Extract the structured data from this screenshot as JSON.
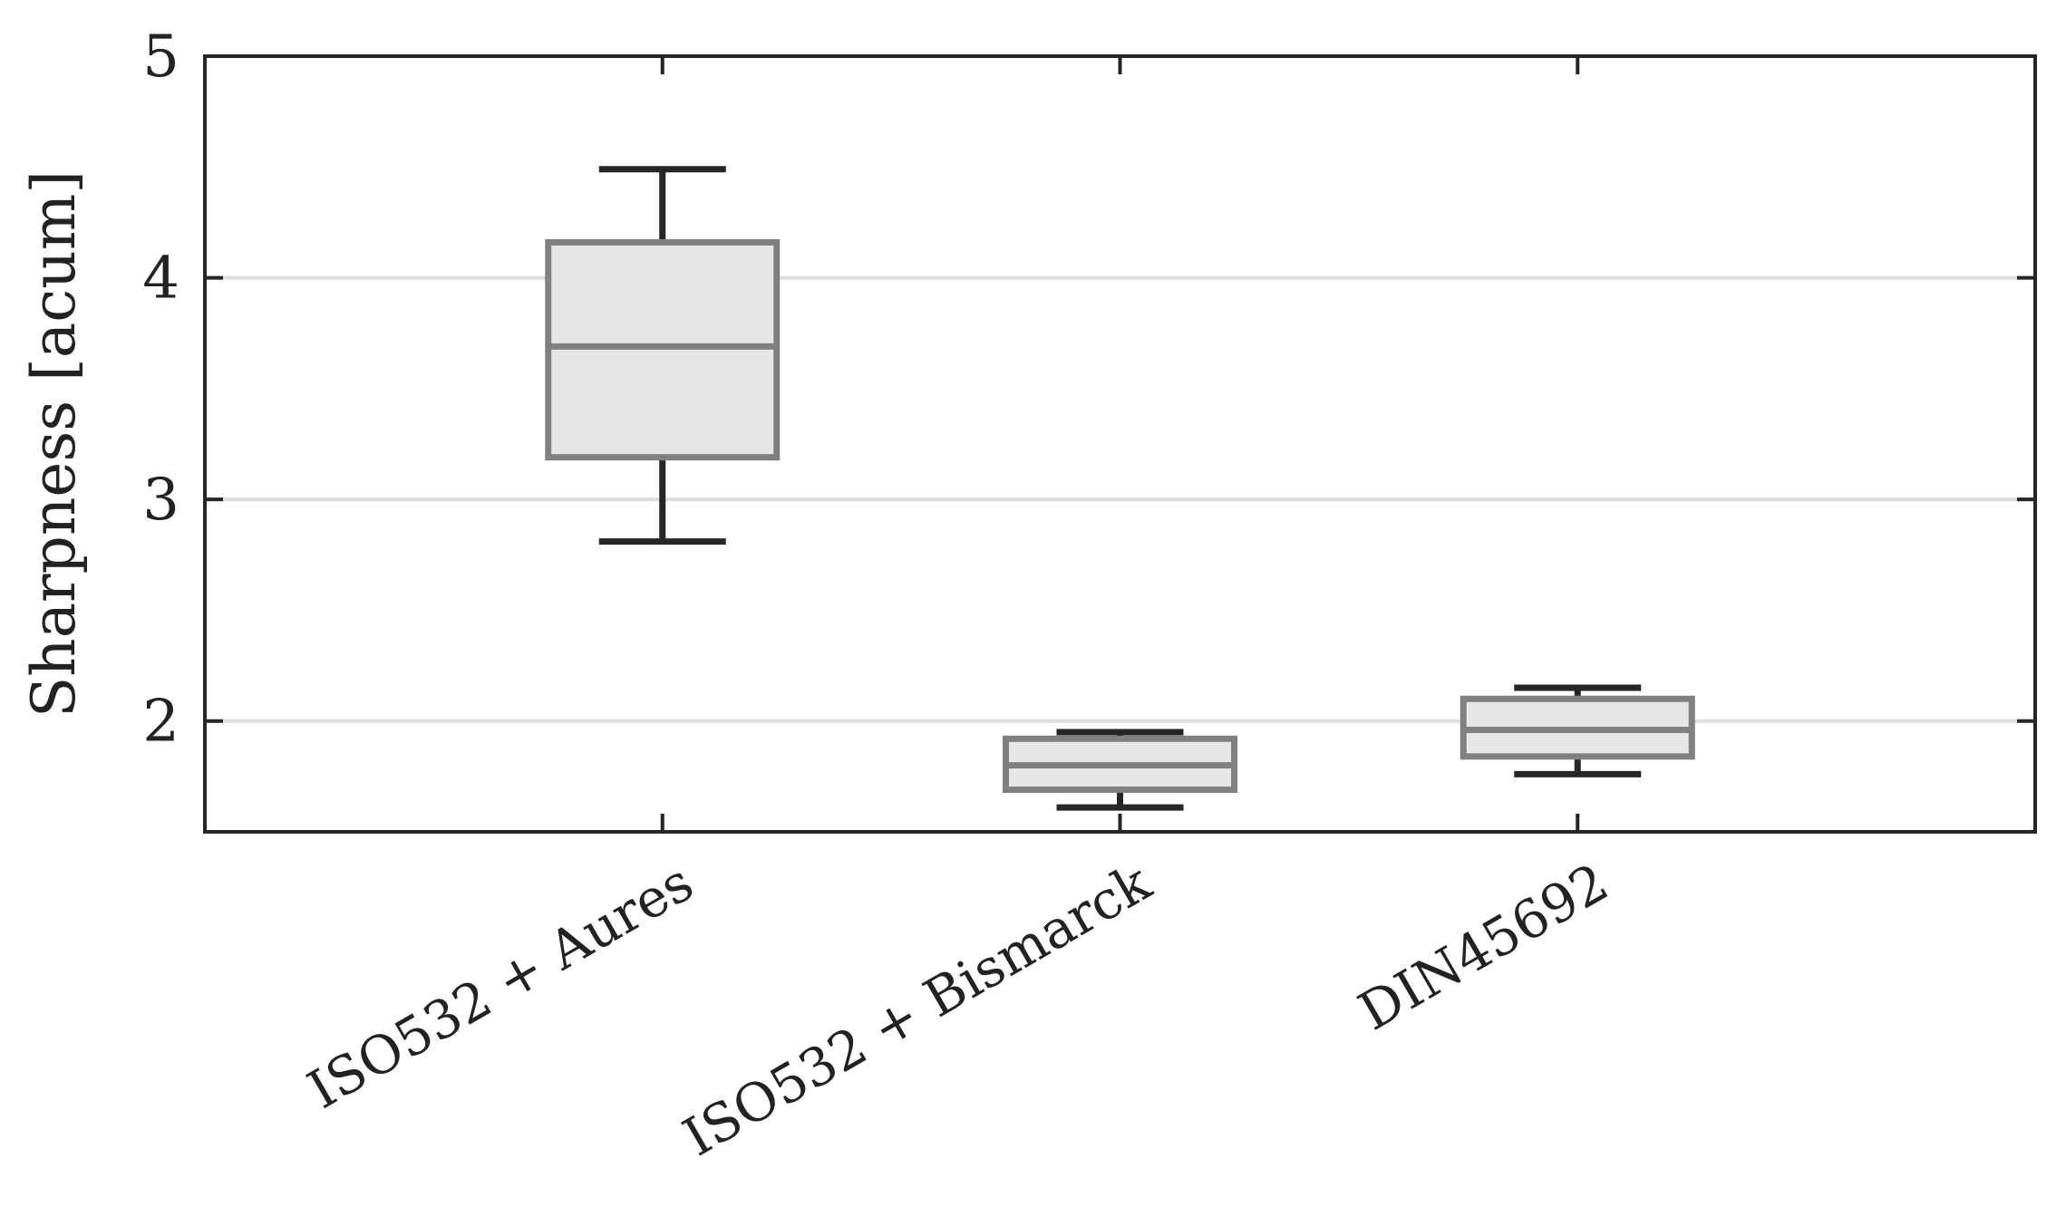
{
  "chart_data": {
    "type": "box",
    "title": "",
    "xlabel": "",
    "ylabel": "Sharpness [acum]",
    "ylim": [
      1.5,
      5
    ],
    "yticks": [
      "2",
      "3",
      "4",
      "5"
    ],
    "grid": true,
    "categories": [
      "ISO532 + Aures",
      "ISO532 + Bismarck",
      "DIN45692"
    ],
    "boxes": [
      {
        "whisker_low": 2.81,
        "q1": 3.19,
        "median": 3.69,
        "q3": 4.16,
        "whisker_high": 4.49
      },
      {
        "whisker_low": 1.61,
        "q1": 1.69,
        "median": 1.8,
        "q3": 1.92,
        "whisker_high": 1.95
      },
      {
        "whisker_low": 1.76,
        "q1": 1.84,
        "median": 1.96,
        "q3": 2.1,
        "whisker_high": 2.15
      }
    ],
    "colors": {
      "box_fill": "#e6e6e6",
      "box_edge": "#808080",
      "whisker": "#262626",
      "grid": "#dddddd",
      "axis": "#262626"
    }
  }
}
